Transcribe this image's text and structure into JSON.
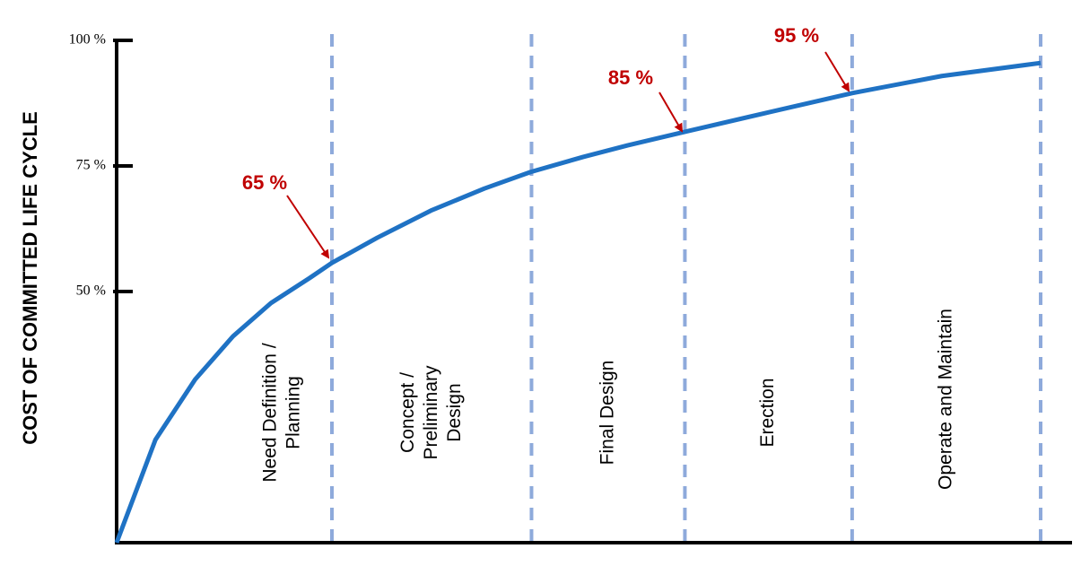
{
  "chart_data": {
    "type": "line",
    "y_label": "COST OF COMMITTED LIFE CYCLE",
    "x": [
      0,
      4.2,
      8.5,
      12.6,
      16.7,
      20.9,
      23.3,
      28.2,
      34.0,
      39.8,
      44.8,
      50.5,
      55.3,
      61.5,
      69.9,
      79.6,
      89.3,
      100
    ],
    "values": [
      0,
      20.5,
      32.5,
      41.1,
      47.7,
      52.7,
      55.7,
      60.7,
      66.1,
      70.5,
      73.8,
      76.8,
      79.1,
      81.8,
      85.4,
      89.5,
      92.9,
      95.5
    ],
    "color": "#1f72c4",
    "xlim": [
      0,
      100
    ],
    "ylim": [
      0,
      100
    ],
    "yticks": [
      {
        "value": 50,
        "label": "50 %"
      },
      {
        "value": 75,
        "label": "75 %"
      },
      {
        "value": 100,
        "label": "100 %"
      }
    ],
    "boundaries": [
      23.3,
      44.9,
      61.5,
      79.6,
      100
    ],
    "boundary_color": "#8eaadb",
    "phases": [
      {
        "label": [
          "Need Definition /",
          "Planning"
        ]
      },
      {
        "label": [
          "Concept /",
          "Preliminary",
          "Design"
        ]
      },
      {
        "label": [
          "Final Design"
        ]
      },
      {
        "label": [
          "Erection"
        ]
      },
      {
        "label": [
          "Operate and Maintain"
        ]
      }
    ],
    "annotations": [
      "65 %",
      "85 %",
      "95 %"
    ]
  }
}
